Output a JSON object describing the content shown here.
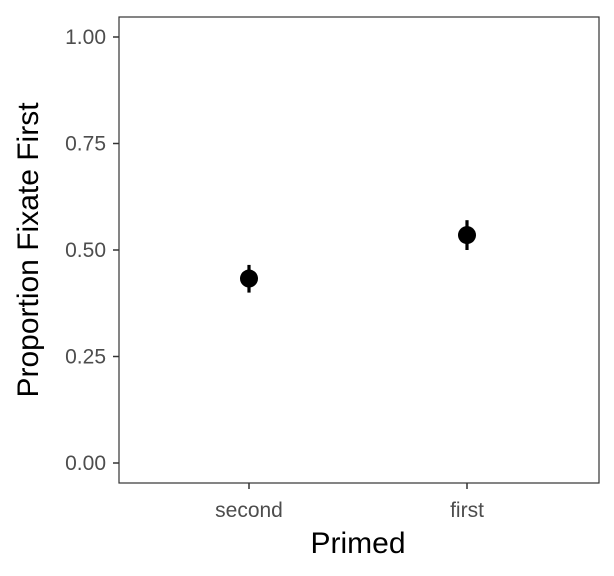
{
  "chart_data": {
    "type": "scatter",
    "title": "",
    "xlabel": "Primed",
    "ylabel": "Proportion Fixate First",
    "categories": [
      "second",
      "first"
    ],
    "series": [
      {
        "values": [
          0.433,
          0.535
        ],
        "error_low": [
          0.4,
          0.5
        ],
        "error_high": [
          0.465,
          0.57
        ]
      }
    ],
    "ylim": [
      0.0,
      1.0
    ],
    "yticks": [
      "0.00",
      "0.25",
      "0.50",
      "0.75",
      "1.00"
    ],
    "ytick_values": [
      0.0,
      0.25,
      0.5,
      0.75,
      1.0
    ],
    "grid": false,
    "legend": "none",
    "colors": {
      "point": "#000000",
      "axis": "#333333",
      "tick_text": "#4d4d4d"
    }
  }
}
